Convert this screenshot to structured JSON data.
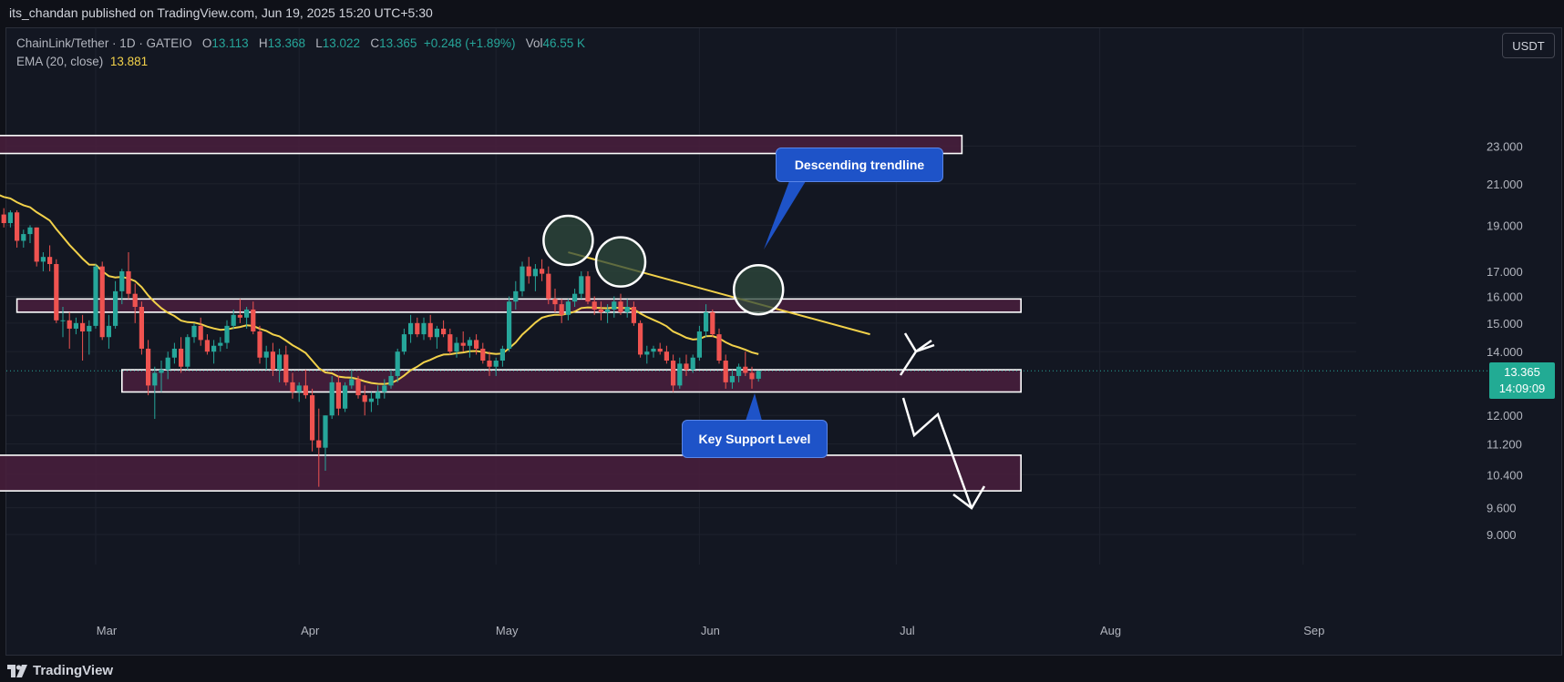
{
  "publisher": "its_chandan published on TradingView.com, Jun 19, 2025 15:20 UTC+5:30",
  "legend": {
    "symbol": "ChainLink/Tether · 1D · GATEIO",
    "o_label": "O",
    "o_val": "13.113",
    "h_label": "H",
    "h_val": "13.368",
    "l_label": "L",
    "l_val": "13.022",
    "c_label": "C",
    "c_val": "13.365",
    "change": "+0.248 (+1.89%)",
    "vol_label": "Vol",
    "vol_val": "46.55 K",
    "ema_label": "EMA (20, close)",
    "ema_val": "13.881"
  },
  "currency": "USDT",
  "price_tag": {
    "price": "13.365",
    "countdown": "14:09:09"
  },
  "annotations": {
    "descending_trendline": "Descending trendline",
    "key_support": "Key Support Level"
  },
  "branding": "TradingView",
  "colors": {
    "up": "#26a69a",
    "down": "#ef5350",
    "ema": "#f2d14a",
    "background": "#131722",
    "zone_fill": "#4a1f3d",
    "callout": "#1e53c8"
  },
  "chart_data": {
    "type": "candlestick",
    "ylim": [
      8.5,
      24.0
    ],
    "y_scale": "log",
    "yticks": [
      23.0,
      21.0,
      19.0,
      17.0,
      16.0,
      15.0,
      14.0,
      12.0,
      11.2,
      10.4,
      9.6,
      9.0
    ],
    "ytick_labels": [
      "23.000",
      "21.000",
      "19.000",
      "17.000",
      "16.000",
      "15.000",
      "14.000",
      "12.000",
      "11.200",
      "10.400",
      "9.600",
      "9.000"
    ],
    "xtick_labels": [
      "Mar",
      "Apr",
      "May",
      "Jun",
      "Jul",
      "Aug",
      "Sep"
    ],
    "xtick_dates": [
      "2025-03-01",
      "2025-04-01",
      "2025-05-01",
      "2025-06-01",
      "2025-07-01",
      "2025-08-01",
      "2025-09-01"
    ],
    "candles_start_date": "2025-02-14",
    "candles_ohlc": [
      [
        19.6,
        19.9,
        19.2,
        19.5
      ],
      [
        19.5,
        19.8,
        18.9,
        19.1
      ],
      [
        19.1,
        19.7,
        18.9,
        19.6
      ],
      [
        19.6,
        19.7,
        18.0,
        18.3
      ],
      [
        18.3,
        18.8,
        18.0,
        18.6
      ],
      [
        18.6,
        19.0,
        18.2,
        18.9
      ],
      [
        18.9,
        18.9,
        17.2,
        17.4
      ],
      [
        17.4,
        17.8,
        17.0,
        17.6
      ],
      [
        17.6,
        18.1,
        17.0,
        17.3
      ],
      [
        17.3,
        17.5,
        15.0,
        15.1
      ],
      [
        15.1,
        15.6,
        14.5,
        15.1
      ],
      [
        15.1,
        15.4,
        14.1,
        14.8
      ],
      [
        14.8,
        15.2,
        14.6,
        15.0
      ],
      [
        15.0,
        15.3,
        13.7,
        14.7
      ],
      [
        14.7,
        15.1,
        13.9,
        14.9
      ],
      [
        14.9,
        17.3,
        14.8,
        17.2
      ],
      [
        17.2,
        17.4,
        14.4,
        14.5
      ],
      [
        14.5,
        15.3,
        14.1,
        14.9
      ],
      [
        14.9,
        16.6,
        14.8,
        16.2
      ],
      [
        16.2,
        17.1,
        15.7,
        17.0
      ],
      [
        17.0,
        17.8,
        15.9,
        16.1
      ],
      [
        16.1,
        16.5,
        15.0,
        15.6
      ],
      [
        15.6,
        15.8,
        13.9,
        14.1
      ],
      [
        14.1,
        14.4,
        12.6,
        12.9
      ],
      [
        12.9,
        13.5,
        11.9,
        13.3
      ],
      [
        13.3,
        13.7,
        12.7,
        13.4
      ],
      [
        13.4,
        14.0,
        13.1,
        13.8
      ],
      [
        13.8,
        14.3,
        13.6,
        14.1
      ],
      [
        14.1,
        14.5,
        13.3,
        13.5
      ],
      [
        13.5,
        14.6,
        13.4,
        14.5
      ],
      [
        14.5,
        15.0,
        14.3,
        14.9
      ],
      [
        14.9,
        15.2,
        14.2,
        14.4
      ],
      [
        14.4,
        14.6,
        13.9,
        14.0
      ],
      [
        14.0,
        14.4,
        13.6,
        14.2
      ],
      [
        14.2,
        14.5,
        14.0,
        14.3
      ],
      [
        14.3,
        15.1,
        14.1,
        14.9
      ],
      [
        14.9,
        15.5,
        14.8,
        15.3
      ],
      [
        15.3,
        15.9,
        15.0,
        15.2
      ],
      [
        15.2,
        15.6,
        14.8,
        15.5
      ],
      [
        15.5,
        15.8,
        14.6,
        14.7
      ],
      [
        14.7,
        14.9,
        13.6,
        13.8
      ],
      [
        13.8,
        14.2,
        13.4,
        14.0
      ],
      [
        14.0,
        14.3,
        13.2,
        13.4
      ],
      [
        13.4,
        14.1,
        13.0,
        13.9
      ],
      [
        13.9,
        14.2,
        12.9,
        13.0
      ],
      [
        13.0,
        13.3,
        12.5,
        12.7
      ],
      [
        12.7,
        13.0,
        12.4,
        12.9
      ],
      [
        12.9,
        13.4,
        12.5,
        12.6
      ],
      [
        12.6,
        12.8,
        11.0,
        11.3
      ],
      [
        11.3,
        12.2,
        10.1,
        11.1
      ],
      [
        11.1,
        12.0,
        10.5,
        12.0
      ],
      [
        12.0,
        13.2,
        11.9,
        13.0
      ],
      [
        13.0,
        13.2,
        12.0,
        12.2
      ],
      [
        12.2,
        13.0,
        12.1,
        12.9
      ],
      [
        12.9,
        13.4,
        12.8,
        13.1
      ],
      [
        13.1,
        13.2,
        12.5,
        12.6
      ],
      [
        12.6,
        12.9,
        12.0,
        12.4
      ],
      [
        12.4,
        12.7,
        12.1,
        12.5
      ],
      [
        12.5,
        12.9,
        12.3,
        12.7
      ],
      [
        12.7,
        13.1,
        12.5,
        12.9
      ],
      [
        12.9,
        13.4,
        12.8,
        13.2
      ],
      [
        13.2,
        14.1,
        13.0,
        14.0
      ],
      [
        14.0,
        14.8,
        13.9,
        14.6
      ],
      [
        14.6,
        15.3,
        14.3,
        15.0
      ],
      [
        15.0,
        15.2,
        14.5,
        14.6
      ],
      [
        14.6,
        15.2,
        14.4,
        15.0
      ],
      [
        15.0,
        15.3,
        14.4,
        14.5
      ],
      [
        14.5,
        14.9,
        14.1,
        14.8
      ],
      [
        14.8,
        15.1,
        14.5,
        14.6
      ],
      [
        14.6,
        14.8,
        13.9,
        14.0
      ],
      [
        14.0,
        14.5,
        13.8,
        14.3
      ],
      [
        14.3,
        14.7,
        14.0,
        14.2
      ],
      [
        14.2,
        14.5,
        13.8,
        14.4
      ],
      [
        14.4,
        14.6,
        13.9,
        14.1
      ],
      [
        14.1,
        14.3,
        13.6,
        13.7
      ],
      [
        13.7,
        14.0,
        13.2,
        13.5
      ],
      [
        13.5,
        13.8,
        13.2,
        13.7
      ],
      [
        13.7,
        14.2,
        13.5,
        14.1
      ],
      [
        14.1,
        16.0,
        14.0,
        15.8
      ],
      [
        15.8,
        16.6,
        15.5,
        16.2
      ],
      [
        16.2,
        17.4,
        16.0,
        17.2
      ],
      [
        17.2,
        17.6,
        16.5,
        16.8
      ],
      [
        16.8,
        17.3,
        16.2,
        17.1
      ],
      [
        17.1,
        17.5,
        16.6,
        16.9
      ],
      [
        16.9,
        17.2,
        15.7,
        15.9
      ],
      [
        15.9,
        16.3,
        15.4,
        15.7
      ],
      [
        15.7,
        15.9,
        15.0,
        15.3
      ],
      [
        15.3,
        15.9,
        15.1,
        15.8
      ],
      [
        15.8,
        16.3,
        15.6,
        16.1
      ],
      [
        16.1,
        17.0,
        15.9,
        16.8
      ],
      [
        16.8,
        17.0,
        15.7,
        15.8
      ],
      [
        15.8,
        16.0,
        15.3,
        15.5
      ],
      [
        15.5,
        15.8,
        15.1,
        15.4
      ],
      [
        15.4,
        15.7,
        15.0,
        15.5
      ],
      [
        15.5,
        16.0,
        15.2,
        15.8
      ],
      [
        15.8,
        16.1,
        15.3,
        15.4
      ],
      [
        15.4,
        15.9,
        15.2,
        15.6
      ],
      [
        15.6,
        15.8,
        14.9,
        15.0
      ],
      [
        15.0,
        15.1,
        13.8,
        13.9
      ],
      [
        13.9,
        14.2,
        13.6,
        14.0
      ],
      [
        14.0,
        14.2,
        13.8,
        14.1
      ],
      [
        14.1,
        14.3,
        13.9,
        14.0
      ],
      [
        14.0,
        14.2,
        13.6,
        13.7
      ],
      [
        13.7,
        13.9,
        12.7,
        12.9
      ],
      [
        12.9,
        13.8,
        12.8,
        13.6
      ],
      [
        13.6,
        13.9,
        13.2,
        13.4
      ],
      [
        13.4,
        13.9,
        13.3,
        13.8
      ],
      [
        13.8,
        14.9,
        13.7,
        14.7
      ],
      [
        14.7,
        15.7,
        14.5,
        15.4
      ],
      [
        15.4,
        15.5,
        14.5,
        14.6
      ],
      [
        14.6,
        14.8,
        13.6,
        13.7
      ],
      [
        13.7,
        13.9,
        12.8,
        13.0
      ],
      [
        13.0,
        13.4,
        12.8,
        13.2
      ],
      [
        13.2,
        13.6,
        13.0,
        13.5
      ],
      [
        13.5,
        14.0,
        13.2,
        13.3
      ],
      [
        13.3,
        13.5,
        12.8,
        13.1
      ],
      [
        13.113,
        13.368,
        13.022,
        13.365
      ]
    ],
    "ema_period": 20,
    "ema_last": 13.881,
    "zones": [
      {
        "from": 22.6,
        "to": 23.6,
        "start_date": "2025-02-14",
        "end_date": "2025-07-11"
      },
      {
        "from": 15.4,
        "to": 15.9,
        "start_date": "2025-02-17",
        "end_date": "2025-07-20"
      },
      {
        "from": 12.7,
        "to": 13.4,
        "start_date": "2025-03-05",
        "end_date": "2025-07-20"
      },
      {
        "from": 10.0,
        "to": 10.9,
        "start_date": "2025-02-14",
        "end_date": "2025-07-20"
      }
    ],
    "trendline": {
      "start_date": "2025-05-12",
      "start_price": 17.8,
      "end_date": "2025-06-27",
      "end_price": 14.6
    },
    "peaks": [
      {
        "date": "2025-05-12",
        "price": 17.8
      },
      {
        "date": "2025-05-20",
        "price": 16.9
      },
      {
        "date": "2025-06-10",
        "price": 15.8
      }
    ]
  }
}
